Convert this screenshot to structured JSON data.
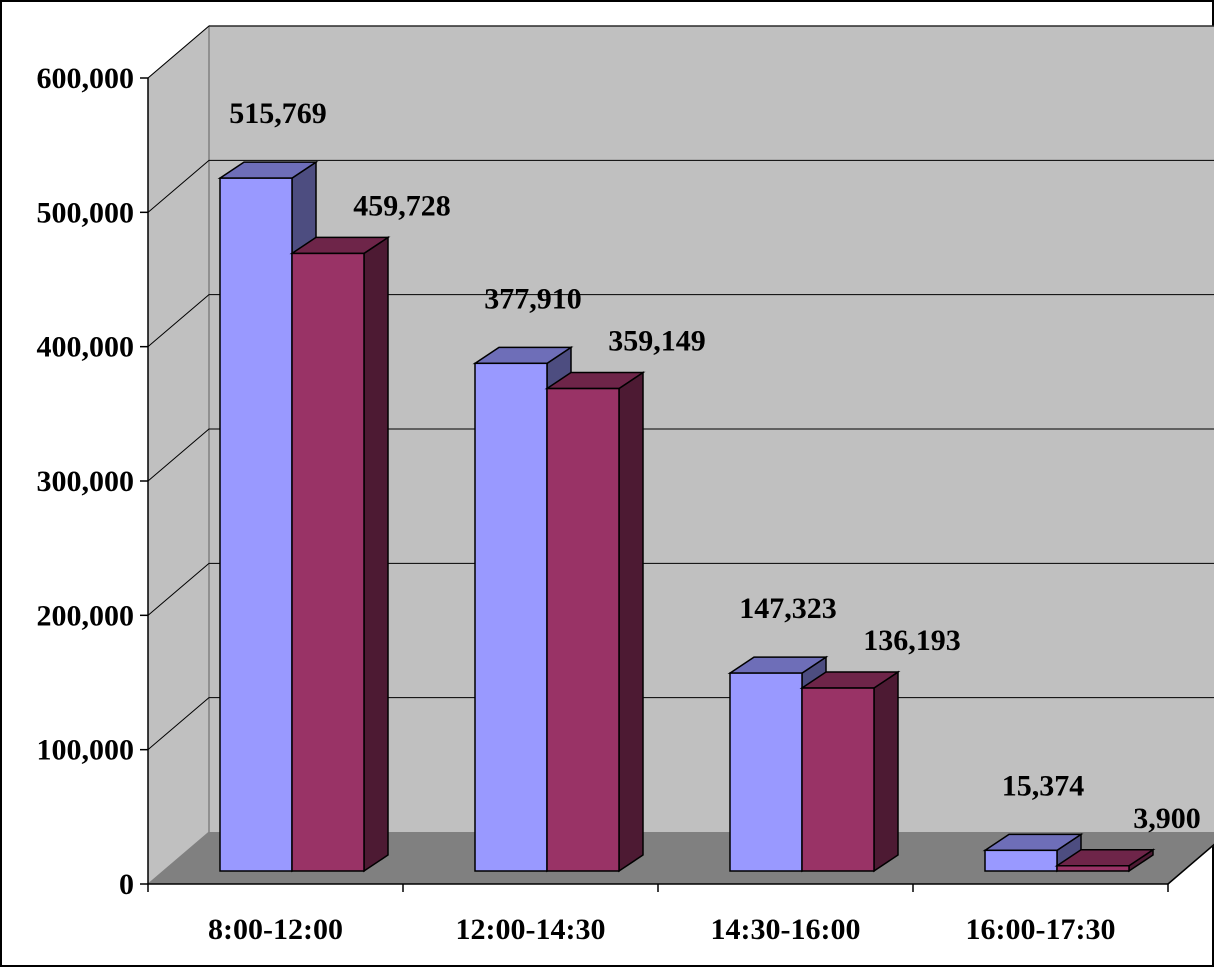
{
  "chart_data": {
    "type": "bar",
    "title": "",
    "xlabel": "",
    "ylabel": "",
    "categories": [
      "8:00-12:00",
      "12:00-14:30",
      "14:30-16:00",
      "16:00-17:30"
    ],
    "series": [
      {
        "values": [
          515769,
          377910,
          147323,
          15374
        ],
        "labels": [
          "515,769",
          "377,910",
          "147,323",
          "15,374"
        ],
        "color": "#9999ff"
      },
      {
        "values": [
          459728,
          359149,
          136193,
          3900
        ],
        "labels": [
          "459,728",
          "359,149",
          "136,193",
          "3,900"
        ],
        "color": "#993366"
      }
    ],
    "ylim": [
      0,
      600000
    ],
    "yticks": [
      "0",
      "100,000",
      "200,000",
      "300,000",
      "400,000",
      "500,000",
      "600,000"
    ],
    "grid": true,
    "legend": "none",
    "style": "3d-column"
  }
}
